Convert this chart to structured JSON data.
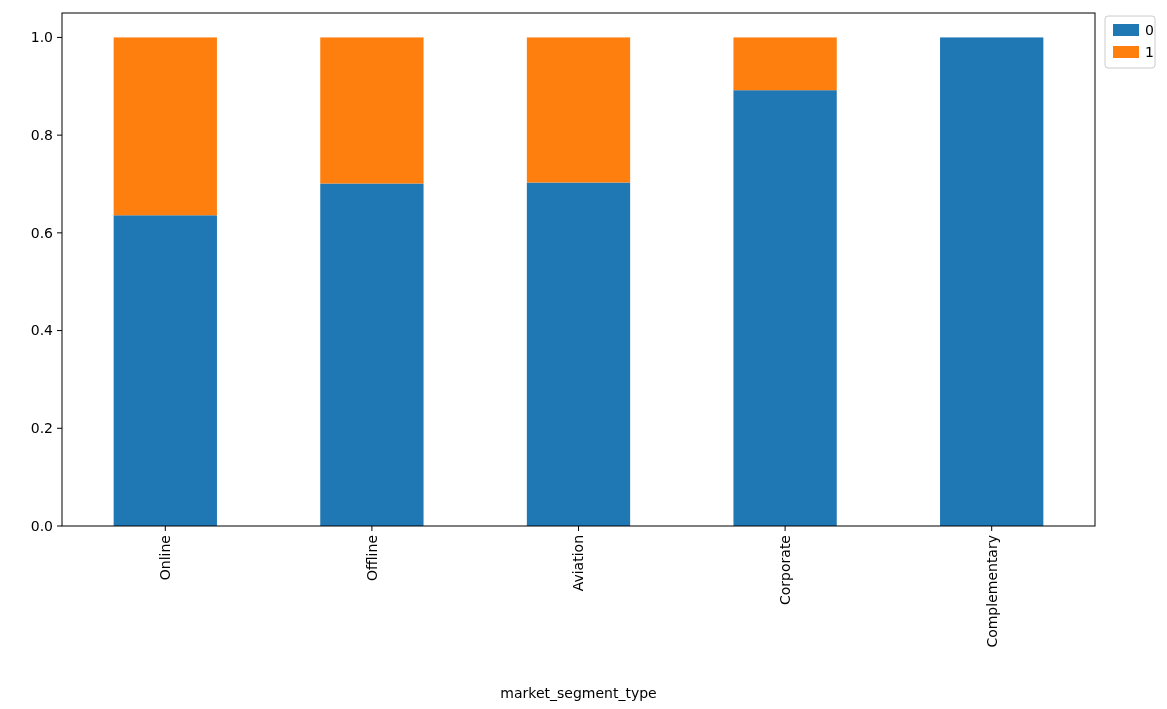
{
  "chart_data": {
    "type": "bar",
    "stacked": true,
    "xlabel": "market_segment_type",
    "categories": [
      "Online",
      "Offline",
      "Aviation",
      "Corporate",
      "Complementary"
    ],
    "series": [
      {
        "name": "0",
        "color": "#1f77b4",
        "values": [
          0.636,
          0.701,
          0.703,
          0.892,
          1.0
        ]
      },
      {
        "name": "1",
        "color": "#ff7f0e",
        "values": [
          0.364,
          0.299,
          0.297,
          0.108,
          0.0
        ]
      }
    ],
    "ylim": [
      0,
      1.05
    ],
    "yticks": [
      {
        "value": 0,
        "label": "0.0"
      },
      {
        "value": 0.2,
        "label": "0.2"
      },
      {
        "value": 0.4,
        "label": "0.4"
      },
      {
        "value": 0.6,
        "label": "0.6"
      },
      {
        "value": 0.8,
        "label": "0.8"
      },
      {
        "value": 1,
        "label": "1.0"
      }
    ],
    "grid": false,
    "legend": "top right"
  }
}
